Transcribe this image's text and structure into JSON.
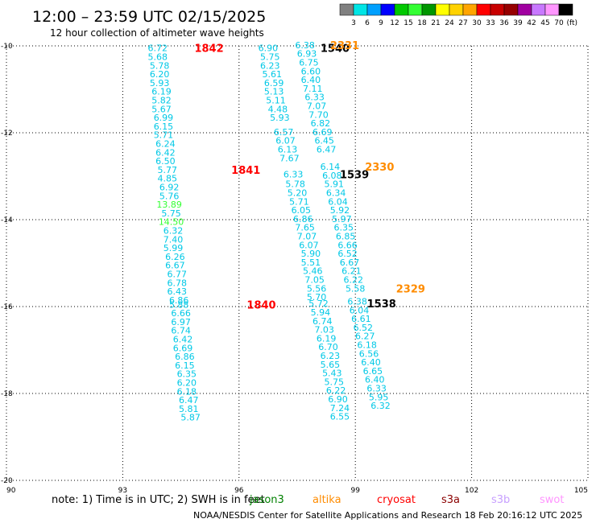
{
  "header": {
    "title": "12:00 – 23:59 UTC 02/15/2025",
    "subtitle": "12 hour collection of altimeter wave heights"
  },
  "colorbar": {
    "labels": [
      "3",
      "6",
      "9",
      "12",
      "15",
      "18",
      "21",
      "24",
      "27",
      "30",
      "33",
      "36",
      "39",
      "42",
      "45",
      "70"
    ],
    "unit": "(ft)",
    "colors": [
      "#808080",
      "#00e5e5",
      "#00a0ff",
      "#0000ff",
      "#00c800",
      "#33ff33",
      "#009600",
      "#ffff00",
      "#ffd200",
      "#ffa500",
      "#ff0000",
      "#c80000",
      "#960000",
      "#a000a0",
      "#c878ff",
      "#ff96ff",
      "#000000"
    ]
  },
  "chart_data": {
    "type": "scatter",
    "title": "12:00 – 23:59 UTC 02/15/2025",
    "subtitle": "12 hour collection of altimeter wave heights",
    "xlabel": "",
    "ylabel": "",
    "xlim": [
      90,
      105
    ],
    "ylim": [
      -20,
      -10
    ],
    "xticks": [
      "90",
      "93",
      "96",
      "99",
      "102",
      "105"
    ],
    "yticks": [
      "-10",
      "-12",
      "-14",
      "-16",
      "-18",
      "-20"
    ],
    "grid": true,
    "series": [
      {
        "track": "A",
        "points": [
          {
            "x": 93.9,
            "y": -10.05,
            "v": "6.72"
          },
          {
            "x": 93.9,
            "y": -10.25,
            "v": "5.68"
          },
          {
            "x": 93.95,
            "y": -10.45,
            "v": "5.78"
          },
          {
            "x": 93.95,
            "y": -10.65,
            "v": "6.20"
          },
          {
            "x": 93.95,
            "y": -10.85,
            "v": "5.93"
          },
          {
            "x": 94.0,
            "y": -11.05,
            "v": "6.19"
          },
          {
            "x": 94.0,
            "y": -11.25,
            "v": "5.82"
          },
          {
            "x": 94.0,
            "y": -11.45,
            "v": "5.67"
          },
          {
            "x": 94.05,
            "y": -11.65,
            "v": "6.99"
          },
          {
            "x": 94.05,
            "y": -11.85,
            "v": "6.15"
          },
          {
            "x": 94.05,
            "y": -12.05,
            "v": "5.71"
          },
          {
            "x": 94.1,
            "y": -12.25,
            "v": "6.24"
          },
          {
            "x": 94.1,
            "y": -12.45,
            "v": "6.42"
          },
          {
            "x": 94.1,
            "y": -12.65,
            "v": "6.50"
          },
          {
            "x": 94.15,
            "y": -12.85,
            "v": "5.77"
          },
          {
            "x": 94.15,
            "y": -13.05,
            "v": "4.85"
          },
          {
            "x": 94.2,
            "y": -13.25,
            "v": "6.92"
          },
          {
            "x": 94.2,
            "y": -13.45,
            "v": "5.76"
          },
          {
            "x": 94.2,
            "y": -13.65,
            "v": "13.89",
            "c": "#33ff33"
          },
          {
            "x": 94.25,
            "y": -13.85,
            "v": "5.75"
          },
          {
            "x": 94.25,
            "y": -14.05,
            "v": "14.50",
            "c": "#33ff33"
          },
          {
            "x": 94.3,
            "y": -14.25,
            "v": "6.32"
          },
          {
            "x": 94.3,
            "y": -14.45,
            "v": "7.40"
          },
          {
            "x": 94.3,
            "y": -14.65,
            "v": "5.99"
          },
          {
            "x": 94.35,
            "y": -14.85,
            "v": "6.26"
          },
          {
            "x": 94.35,
            "y": -15.05,
            "v": "6.67"
          },
          {
            "x": 94.4,
            "y": -15.25,
            "v": "6.77"
          },
          {
            "x": 94.4,
            "y": -15.45,
            "v": "6.78"
          },
          {
            "x": 94.4,
            "y": -15.65,
            "v": "6.43"
          },
          {
            "x": 94.45,
            "y": -15.85,
            "v": "6.86"
          },
          {
            "x": 94.45,
            "y": -15.95,
            "v": "5.88"
          },
          {
            "x": 94.5,
            "y": -16.15,
            "v": "6.66"
          },
          {
            "x": 94.5,
            "y": -16.35,
            "v": "6.97"
          },
          {
            "x": 94.5,
            "y": -16.55,
            "v": "6.74"
          },
          {
            "x": 94.55,
            "y": -16.75,
            "v": "6.42"
          },
          {
            "x": 94.55,
            "y": -16.95,
            "v": "6.69"
          },
          {
            "x": 94.6,
            "y": -17.15,
            "v": "6.86"
          },
          {
            "x": 94.6,
            "y": -17.35,
            "v": "6.15"
          },
          {
            "x": 94.65,
            "y": -17.55,
            "v": "6.35"
          },
          {
            "x": 94.65,
            "y": -17.75,
            "v": "6.20"
          },
          {
            "x": 94.65,
            "y": -17.95,
            "v": "6.18"
          },
          {
            "x": 94.7,
            "y": -18.15,
            "v": "6.47"
          },
          {
            "x": 94.7,
            "y": -18.35,
            "v": "5.81"
          },
          {
            "x": 94.75,
            "y": -18.55,
            "v": "5.87"
          }
        ]
      },
      {
        "track": "B",
        "points": [
          {
            "x": 96.75,
            "y": -10.05,
            "v": "6.90"
          },
          {
            "x": 96.8,
            "y": -10.25,
            "v": "5.75"
          },
          {
            "x": 96.8,
            "y": -10.45,
            "v": "6.23"
          },
          {
            "x": 96.85,
            "y": -10.65,
            "v": "5.61"
          },
          {
            "x": 96.9,
            "y": -10.85,
            "v": "6.59"
          },
          {
            "x": 96.9,
            "y": -11.05,
            "v": "5.13"
          },
          {
            "x": 96.95,
            "y": -11.25,
            "v": "5.11"
          },
          {
            "x": 97.0,
            "y": -11.45,
            "v": "4.48"
          },
          {
            "x": 97.05,
            "y": -11.65,
            "v": "5.93"
          },
          {
            "x": 97.15,
            "y": -11.98,
            "v": "6.57"
          },
          {
            "x": 97.2,
            "y": -12.18,
            "v": "6.07"
          },
          {
            "x": 97.25,
            "y": -12.38,
            "v": "6.13"
          },
          {
            "x": 97.3,
            "y": -12.58,
            "v": "7.67"
          },
          {
            "x": 97.4,
            "y": -12.95,
            "v": "6.33"
          },
          {
            "x": 97.45,
            "y": -13.18,
            "v": "5.78"
          },
          {
            "x": 97.5,
            "y": -13.38,
            "v": "5.20"
          },
          {
            "x": 97.55,
            "y": -13.58,
            "v": "5.71"
          },
          {
            "x": 97.6,
            "y": -13.78,
            "v": "6.05"
          },
          {
            "x": 97.65,
            "y": -13.98,
            "v": "6.86"
          },
          {
            "x": 97.7,
            "y": -14.18,
            "v": "7.65"
          },
          {
            "x": 97.75,
            "y": -14.38,
            "v": "7.07"
          },
          {
            "x": 97.8,
            "y": -14.58,
            "v": "6.07"
          },
          {
            "x": 97.85,
            "y": -14.78,
            "v": "5.90"
          },
          {
            "x": 97.85,
            "y": -14.98,
            "v": "5.51"
          },
          {
            "x": 97.9,
            "y": -15.18,
            "v": "5.46"
          },
          {
            "x": 97.95,
            "y": -15.38,
            "v": "7.05"
          },
          {
            "x": 98.0,
            "y": -15.58,
            "v": "5.56"
          },
          {
            "x": 98.0,
            "y": -15.78,
            "v": "5.70"
          },
          {
            "x": 98.05,
            "y": -15.93,
            "v": "5.72"
          },
          {
            "x": 98.1,
            "y": -16.13,
            "v": "5.94"
          },
          {
            "x": 98.15,
            "y": -16.33,
            "v": "6.74"
          },
          {
            "x": 98.2,
            "y": -16.53,
            "v": "7.03"
          },
          {
            "x": 98.25,
            "y": -16.73,
            "v": "6.19"
          },
          {
            "x": 98.3,
            "y": -16.93,
            "v": "6.70"
          },
          {
            "x": 98.35,
            "y": -17.13,
            "v": "6.23"
          },
          {
            "x": 98.35,
            "y": -17.33,
            "v": "5.65"
          },
          {
            "x": 98.4,
            "y": -17.53,
            "v": "5.43"
          },
          {
            "x": 98.45,
            "y": -17.73,
            "v": "5.75"
          },
          {
            "x": 98.5,
            "y": -17.93,
            "v": "6.22"
          },
          {
            "x": 98.55,
            "y": -18.13,
            "v": "6.90"
          },
          {
            "x": 98.6,
            "y": -18.33,
            "v": "7.24"
          },
          {
            "x": 98.6,
            "y": -18.53,
            "v": "6.55"
          }
        ]
      },
      {
        "track": "C",
        "points": [
          {
            "x": 97.7,
            "y": -9.98,
            "v": "6.38"
          },
          {
            "x": 97.75,
            "y": -10.18,
            "v": "6.93"
          },
          {
            "x": 97.8,
            "y": -10.38,
            "v": "6.75"
          },
          {
            "x": 97.85,
            "y": -10.58,
            "v": "6.60"
          },
          {
            "x": 97.85,
            "y": -10.78,
            "v": "6.40"
          },
          {
            "x": 97.9,
            "y": -10.98,
            "v": "7.11"
          },
          {
            "x": 97.95,
            "y": -11.18,
            "v": "6.33"
          },
          {
            "x": 98.0,
            "y": -11.38,
            "v": "7.07"
          },
          {
            "x": 98.05,
            "y": -11.58,
            "v": "7.70"
          },
          {
            "x": 98.1,
            "y": -11.78,
            "v": "6.82"
          },
          {
            "x": 98.15,
            "y": -11.98,
            "v": "6.69"
          },
          {
            "x": 98.2,
            "y": -12.18,
            "v": "6.45"
          },
          {
            "x": 98.25,
            "y": -12.38,
            "v": "6.47"
          },
          {
            "x": 98.35,
            "y": -12.78,
            "v": "6.14"
          },
          {
            "x": 98.4,
            "y": -12.98,
            "v": "6.08"
          },
          {
            "x": 98.45,
            "y": -13.18,
            "v": "5.91"
          },
          {
            "x": 98.5,
            "y": -13.38,
            "v": "6.34"
          },
          {
            "x": 98.55,
            "y": -13.58,
            "v": "6.04"
          },
          {
            "x": 98.6,
            "y": -13.78,
            "v": "5.92"
          },
          {
            "x": 98.65,
            "y": -13.98,
            "v": "5.97"
          },
          {
            "x": 98.7,
            "y": -14.18,
            "v": "6.35"
          },
          {
            "x": 98.75,
            "y": -14.38,
            "v": "6.85"
          },
          {
            "x": 98.8,
            "y": -14.58,
            "v": "6.66"
          },
          {
            "x": 98.8,
            "y": -14.78,
            "v": "6.52"
          },
          {
            "x": 98.85,
            "y": -14.98,
            "v": "6.67"
          },
          {
            "x": 98.9,
            "y": -15.18,
            "v": "6.21"
          },
          {
            "x": 98.95,
            "y": -15.38,
            "v": "6.22"
          },
          {
            "x": 99.0,
            "y": -15.58,
            "v": "5.58"
          },
          {
            "x": 99.05,
            "y": -15.88,
            "v": "6.38"
          },
          {
            "x": 99.1,
            "y": -16.08,
            "v": "6.04"
          },
          {
            "x": 99.15,
            "y": -16.28,
            "v": "6.61"
          },
          {
            "x": 99.2,
            "y": -16.48,
            "v": "6.52"
          },
          {
            "x": 99.25,
            "y": -16.68,
            "v": "6.27"
          },
          {
            "x": 99.3,
            "y": -16.88,
            "v": "6.18"
          },
          {
            "x": 99.35,
            "y": -17.08,
            "v": "6.56"
          },
          {
            "x": 99.4,
            "y": -17.28,
            "v": "6.40"
          },
          {
            "x": 99.45,
            "y": -17.48,
            "v": "6.65"
          },
          {
            "x": 99.5,
            "y": -17.68,
            "v": "6.40"
          },
          {
            "x": 99.55,
            "y": -17.88,
            "v": "6.33"
          },
          {
            "x": 99.6,
            "y": -18.08,
            "v": "5.95"
          },
          {
            "x": 99.65,
            "y": -18.28,
            "v": "6.32"
          }
        ]
      }
    ],
    "pass_labels": [
      {
        "text": "1842",
        "x": 94.85,
        "y": -10.05,
        "color": "#ff0000"
      },
      {
        "text": "1841",
        "x": 95.8,
        "y": -12.85,
        "color": "#ff0000"
      },
      {
        "text": "1840",
        "x": 96.2,
        "y": -15.95,
        "color": "#ff0000"
      },
      {
        "text": "1540",
        "x": 98.1,
        "y": -10.05,
        "color": "#000000"
      },
      {
        "text": "1539",
        "x": 98.6,
        "y": -12.95,
        "color": "#000000"
      },
      {
        "text": "1538",
        "x": 99.3,
        "y": -15.93,
        "color": "#000000"
      },
      {
        "text": "2331",
        "x": 98.35,
        "y": -9.98,
        "color": "#ff8c00"
      },
      {
        "text": "2330",
        "x": 99.25,
        "y": -12.78,
        "color": "#ff8c00"
      },
      {
        "text": "2329",
        "x": 100.05,
        "y": -15.58,
        "color": "#ff8c00"
      }
    ]
  },
  "footer": {
    "note": "note:  1) Time is in UTC; 2) SWH is in feet",
    "credit": "NOAA/NESDIS Center for Satellite Applications and Research    18 Feb 20:16:12 UTC 2025",
    "satellites": [
      {
        "name": "jason3",
        "color": "#008000"
      },
      {
        "name": "altika",
        "color": "#ff8c00"
      },
      {
        "name": "cryosat",
        "color": "#ff0000"
      },
      {
        "name": "s3a",
        "color": "#8b0000"
      },
      {
        "name": "s3b",
        "color": "#c8a0ff"
      },
      {
        "name": "swot",
        "color": "#ff96ff"
      }
    ]
  }
}
